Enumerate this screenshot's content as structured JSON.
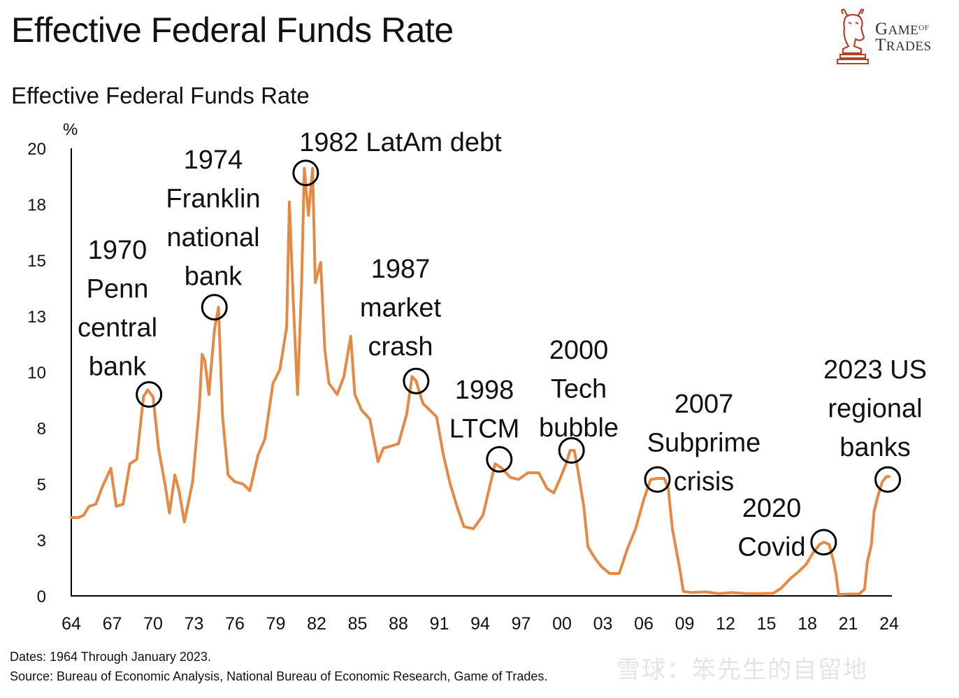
{
  "header": {
    "title": "Effective Federal Funds Rate",
    "logo": {
      "line1_big": "G",
      "line1_rest": "AME",
      "line1_small": "OF",
      "line2_big": "T",
      "line2_rest": "RADES"
    }
  },
  "colors": {
    "line": "#E58A45",
    "axis": "#000000",
    "marker": "#000000"
  },
  "chart_data": {
    "type": "line",
    "title": "Effective Federal Funds Rate",
    "ylabel": "%",
    "xlabel": "",
    "xlim": [
      1964,
      2024
    ],
    "ylim": [
      0,
      20
    ],
    "yticks": [
      0,
      2.5,
      5,
      7.5,
      10,
      12.5,
      15,
      17.5,
      20
    ],
    "ytick_labels": [
      "0",
      "3",
      "5",
      "8",
      "10",
      "13",
      "15",
      "18",
      "20"
    ],
    "xticks": [
      1964,
      1967,
      1970,
      1973,
      1976,
      1979,
      1982,
      1985,
      1988,
      1991,
      1994,
      1997,
      2000,
      2003,
      2006,
      2009,
      2012,
      2015,
      2018,
      2021,
      2024
    ],
    "xtick_labels": [
      "64",
      "67",
      "70",
      "73",
      "76",
      "79",
      "82",
      "85",
      "88",
      "91",
      "94",
      "97",
      "00",
      "03",
      "06",
      "09",
      "12",
      "15",
      "18",
      "21",
      "24"
    ],
    "grid": false,
    "series": [
      {
        "name": "Effective Federal Funds Rate",
        "x": [
          1964.0,
          1964.5,
          1964.9,
          1965.3,
          1965.8,
          1966.3,
          1966.9,
          1967.3,
          1967.8,
          1968.3,
          1968.8,
          1969.3,
          1969.6,
          1970.0,
          1970.4,
          1970.9,
          1971.2,
          1971.6,
          1971.9,
          1972.3,
          1972.9,
          1973.4,
          1973.6,
          1973.8,
          1974.1,
          1974.5,
          1974.8,
          1975.1,
          1975.5,
          1976.0,
          1976.6,
          1977.1,
          1977.7,
          1978.2,
          1978.8,
          1979.3,
          1979.8,
          1980.0,
          1980.3,
          1980.6,
          1980.9,
          1981.1,
          1981.4,
          1981.7,
          1981.9,
          1982.3,
          1982.6,
          1982.9,
          1983.5,
          1984.0,
          1984.5,
          1984.8,
          1985.3,
          1985.9,
          1986.5,
          1986.9,
          1987.5,
          1988.0,
          1988.6,
          1989.0,
          1989.3,
          1989.8,
          1990.3,
          1990.8,
          1991.3,
          1991.8,
          1992.3,
          1992.8,
          1993.5,
          1994.2,
          1994.7,
          1995.1,
          1995.6,
          1996.2,
          1996.8,
          1997.5,
          1998.3,
          1998.9,
          1999.4,
          1999.9,
          2000.3,
          2000.6,
          2000.9,
          2001.2,
          2001.6,
          2001.9,
          2002.4,
          2002.9,
          2003.5,
          2004.2,
          2004.8,
          2005.4,
          2006.0,
          2006.5,
          2007.0,
          2007.5,
          2007.8,
          2008.1,
          2008.4,
          2008.7,
          2008.9,
          2009.5,
          2010.5,
          2011.5,
          2012.5,
          2013.5,
          2014.5,
          2015.5,
          2016.1,
          2016.8,
          2017.4,
          2017.9,
          2018.4,
          2018.9,
          2019.2,
          2019.6,
          2019.9,
          2020.1,
          2020.3,
          2021.0,
          2021.8,
          2022.2,
          2022.4,
          2022.7,
          2022.9,
          2023.2,
          2023.5,
          2023.8,
          2024.0
        ],
        "y": [
          3.5,
          3.5,
          3.6,
          4.0,
          4.1,
          4.9,
          5.7,
          4.0,
          4.1,
          5.9,
          6.1,
          8.9,
          9.2,
          8.9,
          6.6,
          4.9,
          3.7,
          5.4,
          4.7,
          3.3,
          5.1,
          8.5,
          10.8,
          10.5,
          9.0,
          11.9,
          12.9,
          8.0,
          5.4,
          5.1,
          5.0,
          4.7,
          6.3,
          7.0,
          9.5,
          10.1,
          12.0,
          17.6,
          13.0,
          9.0,
          14.0,
          19.1,
          17.0,
          19.1,
          14.0,
          14.9,
          11.0,
          9.5,
          9.0,
          9.8,
          11.6,
          9.0,
          8.3,
          7.9,
          6.0,
          6.6,
          6.7,
          6.8,
          8.1,
          9.8,
          9.6,
          8.6,
          8.3,
          8.0,
          6.3,
          5.0,
          4.0,
          3.1,
          3.0,
          3.6,
          4.9,
          5.9,
          5.7,
          5.3,
          5.2,
          5.5,
          5.5,
          4.8,
          4.6,
          5.3,
          5.9,
          6.5,
          6.5,
          5.5,
          4.0,
          2.2,
          1.7,
          1.3,
          1.0,
          1.0,
          2.1,
          3.0,
          4.3,
          5.2,
          5.25,
          5.25,
          4.8,
          3.0,
          2.0,
          1.0,
          0.2,
          0.15,
          0.18,
          0.1,
          0.15,
          0.1,
          0.1,
          0.12,
          0.35,
          0.8,
          1.1,
          1.4,
          1.9,
          2.3,
          2.4,
          2.3,
          1.6,
          1.0,
          0.06,
          0.08,
          0.08,
          0.3,
          1.5,
          2.3,
          3.8,
          4.5,
          5.1,
          5.33,
          5.33
        ]
      }
    ],
    "annotations": [
      {
        "label": [
          "1970",
          "Penn",
          "central",
          "bank"
        ],
        "x": 1969.7,
        "y": 9.0
      },
      {
        "label": [
          "1974",
          "Franklin",
          "national",
          "bank"
        ],
        "x": 1974.5,
        "y": 12.9
      },
      {
        "label": [
          "1982 LatAm debt"
        ],
        "x": 1981.2,
        "y": 18.9
      },
      {
        "label": [
          "1987",
          "market",
          "crash"
        ],
        "x": 1989.3,
        "y": 9.6
      },
      {
        "label": [
          "1998",
          "LTCM"
        ],
        "x": 1995.4,
        "y": 6.1
      },
      {
        "label": [
          "2000",
          "Tech",
          "bubble"
        ],
        "x": 2000.7,
        "y": 6.5
      },
      {
        "label": [
          "2007",
          "Subprime",
          "crisis"
        ],
        "x": 2007.0,
        "y": 5.2
      },
      {
        "label": [
          "2020",
          "Covid"
        ],
        "x": 2019.2,
        "y": 2.4
      },
      {
        "label": [
          "2023 US",
          "regional",
          "banks"
        ],
        "x": 2023.9,
        "y": 5.2
      }
    ]
  },
  "footer": {
    "dates": "Dates: 1964 Through January 2023.",
    "source": "Source: Bureau of Economic Analysis, National Bureau of Economic Research, Game of Trades.",
    "watermark": "雪球：笨先生的自留地"
  }
}
